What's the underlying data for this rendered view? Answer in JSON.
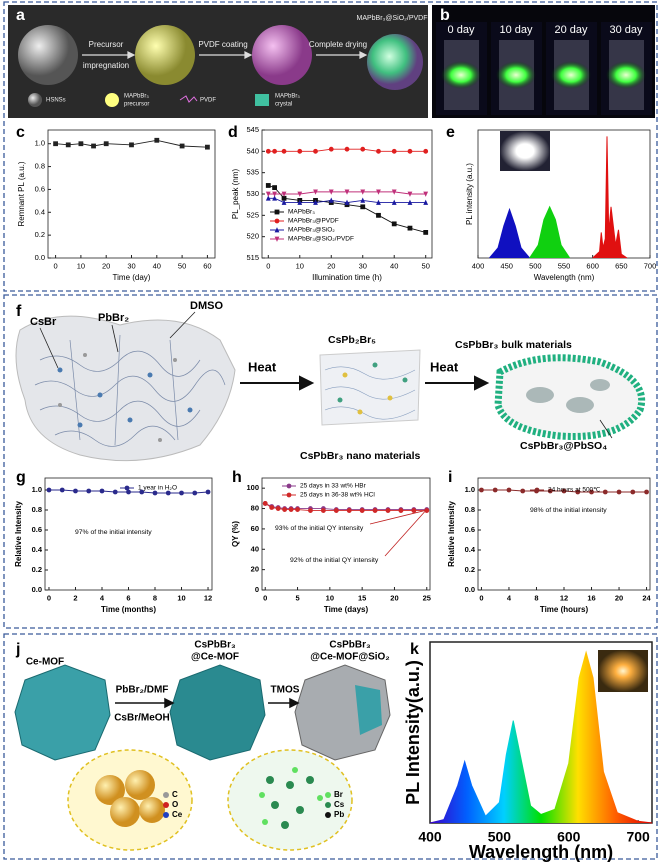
{
  "panels": {
    "a": {
      "label": "a",
      "steps": [
        "Precursor",
        "impregnation",
        "PVDF coating",
        "Complete drying"
      ],
      "product": "MAPbBr₃@SiO₂/PVDF",
      "legend": [
        [
          "HSNSs"
        ],
        [
          "MAPbBr₃",
          "precursor"
        ],
        [
          "PVDF"
        ],
        [
          "MAPbBr₃",
          "crystal"
        ]
      ]
    },
    "b": {
      "label": "b",
      "photos": [
        "0 day",
        "10 day",
        "20 day",
        "30 day"
      ]
    },
    "f": {
      "label": "f",
      "texts": [
        "CsBr",
        "PbBr₂",
        "DMSO",
        "Heat",
        "CsPb₂Br₅",
        "CsPbBr₃ nano materials",
        "Heat",
        "CsPbBr₃ bulk materials",
        "CsPbBr₃@PbSO₄"
      ]
    },
    "j": {
      "label": "j",
      "texts": [
        "Ce-MOF",
        "PbBr₂/DMF",
        "CsBr/MeOH",
        "CsPbBr₃",
        "@Ce-MOF",
        "TMOS",
        "CsPbBr₃",
        "@Ce-MOF@SiO₂"
      ],
      "legend_left": [
        "C",
        "O",
        "Ce"
      ],
      "legend_right": [
        "Br",
        "Cs",
        "Pb"
      ]
    }
  },
  "chart_data": [
    {
      "type": "line",
      "label": "c",
      "xlabel": "Time (day)",
      "ylabel": "Remnant PL (a.u.)",
      "x": [
        0,
        5,
        10,
        15,
        20,
        30,
        40,
        50,
        60
      ],
      "series": [
        {
          "color": "#222222",
          "marker": "square",
          "values": [
            1.0,
            0.99,
            1.0,
            0.98,
            1.0,
            0.99,
            1.03,
            0.98,
            0.97
          ]
        }
      ],
      "xlim": [
        -3,
        63
      ],
      "ylim": [
        0,
        1.12
      ],
      "xticks": [
        0,
        10,
        20,
        30,
        40,
        50,
        60
      ],
      "yticks": [
        {
          "value": 0,
          "label": "0.0"
        },
        0.2,
        0.4,
        0.6,
        0.8,
        {
          "value": 1,
          "label": "1.0"
        }
      ]
    },
    {
      "type": "line",
      "label": "d",
      "xlabel": "Illumination time (h)",
      "ylabel": "PL_peak (nm)",
      "x": [
        0,
        2,
        5,
        10,
        15,
        20,
        25,
        30,
        35,
        40,
        45,
        50
      ],
      "series": [
        {
          "name": "MAPbBr₃",
          "color": "#111111",
          "marker": "square",
          "values": [
            532,
            531.5,
            529,
            528.5,
            528.5,
            528,
            527.5,
            527,
            525,
            523,
            522,
            521
          ]
        },
        {
          "name": "MAPbBr₃@PVDF",
          "color": "#e02020",
          "marker": "circle",
          "values": [
            540,
            540,
            540,
            540,
            540,
            540.5,
            540.5,
            540.5,
            540,
            540,
            540,
            540
          ]
        },
        {
          "name": "MAPbBr₃@SiO₂",
          "color": "#1a1aa0",
          "marker": "triangle",
          "values": [
            529,
            529,
            528,
            528,
            528,
            528.5,
            528,
            528.5,
            528,
            528,
            528,
            528
          ]
        },
        {
          "name": "MAPbBr₃@SiO₂/PVDF",
          "color": "#c0307a",
          "marker": "triangle-down",
          "values": [
            530,
            530,
            530,
            530,
            530.5,
            530.5,
            530.5,
            530.5,
            530.5,
            530.5,
            530,
            530
          ]
        }
      ],
      "xlim": [
        -2,
        52
      ],
      "ylim": [
        515,
        545
      ],
      "xticks": [
        0,
        10,
        20,
        30,
        40,
        50
      ],
      "yticks": [
        515,
        520,
        525,
        530,
        535,
        540,
        545
      ]
    },
    {
      "type": "area",
      "label": "e",
      "xlabel": "Wavelength (nm)",
      "ylabel": "PL intensity (a.u.)",
      "series": [
        {
          "color": "#1010c0",
          "x": [
            420,
            435,
            445,
            455,
            465,
            475,
            490
          ],
          "values": [
            0,
            8,
            25,
            38,
            25,
            8,
            0
          ]
        },
        {
          "color": "#10d010",
          "x": [
            490,
            505,
            515,
            525,
            535,
            545,
            560
          ],
          "values": [
            0,
            10,
            30,
            40,
            30,
            10,
            0
          ]
        },
        {
          "color": "#e01010",
          "x": [
            600,
            612,
            615,
            618,
            622,
            625,
            628,
            632,
            640,
            645,
            650,
            660
          ],
          "values": [
            0,
            5,
            20,
            8,
            15,
            95,
            20,
            40,
            10,
            22,
            3,
            0
          ]
        }
      ],
      "xlim": [
        400,
        700
      ],
      "ylim": [
        0,
        100
      ],
      "xticks": [
        400,
        450,
        500,
        550,
        600,
        650,
        700
      ]
    },
    {
      "type": "line",
      "label": "g",
      "xlabel": "Time (months)",
      "ylabel": "Relative Intensity",
      "x": [
        0,
        1,
        2,
        3,
        4,
        5,
        6,
        7,
        8,
        9,
        10,
        11,
        12
      ],
      "series": [
        {
          "name": "1 year in H₂O",
          "color": "#2a2a8c",
          "marker": "circle",
          "values": [
            1.0,
            1.0,
            0.99,
            0.99,
            0.99,
            0.98,
            0.98,
            0.98,
            0.97,
            0.97,
            0.97,
            0.97,
            0.98
          ]
        }
      ],
      "annotations": [
        "97%  of the initial intensity"
      ],
      "xlim": [
        -0.3,
        12.3
      ],
      "ylim": [
        0,
        1.12
      ],
      "xticks": [
        0,
        2,
        4,
        6,
        8,
        10,
        12
      ],
      "yticks": [
        {
          "value": 0,
          "label": "0.0"
        },
        0.2,
        0.4,
        0.6,
        0.8,
        {
          "value": 1,
          "label": "1.0"
        }
      ]
    },
    {
      "type": "line",
      "label": "h",
      "xlabel": "Time (days)",
      "ylabel": "QY (%)",
      "x": [
        0,
        1,
        2,
        3,
        4,
        5,
        7,
        9,
        11,
        13,
        15,
        17,
        19,
        21,
        23,
        25
      ],
      "series": [
        {
          "name": "25 days in 33 wt% HBr",
          "color": "#8a3a8a",
          "marker": "circle",
          "values": [
            85,
            82,
            81,
            80,
            80,
            80,
            80,
            80,
            79,
            79,
            79,
            79,
            79,
            79,
            79,
            79
          ]
        },
        {
          "name": "25 days in 36-38 wt% HCl",
          "color": "#d02828",
          "marker": "circle",
          "values": [
            85,
            81,
            80,
            79,
            79,
            79,
            78,
            78,
            78,
            78,
            78,
            78,
            78,
            78,
            78,
            78
          ]
        }
      ],
      "annotations": [
        "93% of the initial QY intensity",
        "92% of the initial QY intensity"
      ],
      "xlim": [
        -0.5,
        25.5
      ],
      "ylim": [
        0,
        110
      ],
      "xticks": [
        0,
        5,
        10,
        15,
        20,
        25
      ],
      "yticks": [
        0,
        20,
        40,
        60,
        80,
        100
      ]
    },
    {
      "type": "line",
      "label": "i",
      "xlabel": "Time (hours)",
      "ylabel": "Relative Intensity",
      "x": [
        0,
        2,
        4,
        6,
        8,
        10,
        12,
        14,
        16,
        18,
        20,
        22,
        24
      ],
      "series": [
        {
          "name": "24 hours at 500℃",
          "color": "#8b2a2a",
          "marker": "circle",
          "values": [
            1.0,
            1.0,
            1.0,
            0.99,
            0.99,
            0.99,
            0.99,
            0.98,
            0.98,
            0.98,
            0.98,
            0.98,
            0.98
          ]
        }
      ],
      "annotations": [
        "98% of the initial intensity"
      ],
      "xlim": [
        -0.5,
        24.5
      ],
      "ylim": [
        0,
        1.12
      ],
      "xticks": [
        0,
        4,
        8,
        12,
        16,
        20,
        24
      ],
      "yticks": [
        {
          "value": 0,
          "label": "0.0"
        },
        0.2,
        0.4,
        0.6,
        0.8,
        {
          "value": 1,
          "label": "1.0"
        }
      ]
    },
    {
      "type": "area",
      "label": "k",
      "xlabel": "Wavelength (nm)",
      "ylabel": "PL Intensity(a.u.)",
      "colors": [
        "#3a00c8",
        "#0060ff",
        "#00d0ff",
        "#00e000",
        "#ffe000",
        "#ff6000",
        "#e00000"
      ],
      "series": [
        {
          "x": [
            400,
            420,
            440,
            450,
            460,
            480,
            500,
            510,
            520,
            530,
            545,
            560,
            580,
            600,
            615,
            625,
            635,
            650,
            670,
            700,
            720
          ],
          "values": [
            0,
            2,
            22,
            36,
            22,
            4,
            12,
            40,
            60,
            40,
            10,
            5,
            8,
            35,
            85,
            100,
            85,
            30,
            6,
            1,
            0
          ]
        }
      ],
      "xlim": [
        400,
        720
      ],
      "ylim": [
        0,
        106
      ],
      "xticks": [
        400,
        500,
        600,
        700
      ]
    }
  ]
}
